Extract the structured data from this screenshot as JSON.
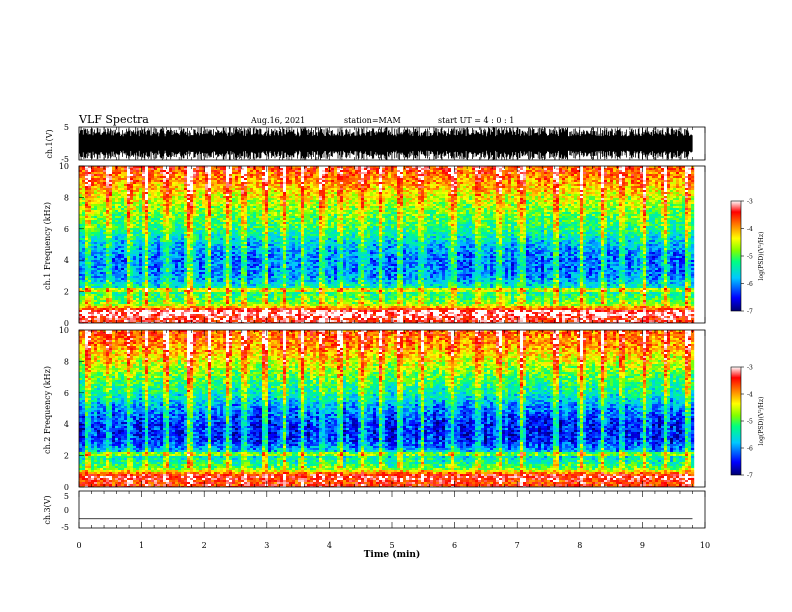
{
  "header": {
    "title": "VLF Spectra",
    "date": "Aug.16, 2021",
    "station": "station=MAM",
    "start": "start UT =  4 : 0  : 1"
  },
  "chart_data": [
    {
      "type": "line",
      "panel": "ch1-waveform",
      "ylabel": "ch.1(V)",
      "yticks": [
        "5",
        "-5"
      ],
      "ylim": [
        -5,
        5
      ],
      "xlim": [
        0,
        10
      ],
      "description_of_trace": "dense broadband waveform filling approx. -4 to 4 V up to ~9.8 min"
    },
    {
      "type": "heatmap",
      "panel": "ch1-spectrogram",
      "ylabel": "ch.1 Frequency (kHz)",
      "yticks": [
        "0",
        "2",
        "4",
        "6",
        "8",
        "10"
      ],
      "ylim": [
        0,
        10
      ],
      "xlim": [
        0,
        10
      ],
      "data_end_min": 9.8,
      "colorbar": {
        "label": "log(PSD)(V²/Hz)",
        "ticks": [
          "-3",
          "-4",
          "-5",
          "-6",
          "-7"
        ],
        "range": [
          -7,
          -3
        ]
      },
      "band_profile_log_psd": [
        {
          "freq_khz": 0.3,
          "value": -3.4
        },
        {
          "freq_khz": 0.7,
          "value": -3.0
        },
        {
          "freq_khz": 1.2,
          "value": -4.8
        },
        {
          "freq_khz": 2.0,
          "value": -5.3
        },
        {
          "freq_khz": 3.0,
          "value": -6.0
        },
        {
          "freq_khz": 4.0,
          "value": -6.1
        },
        {
          "freq_khz": 5.0,
          "value": -5.8
        },
        {
          "freq_khz": 6.0,
          "value": -5.2
        },
        {
          "freq_khz": 7.0,
          "value": -4.9
        },
        {
          "freq_khz": 8.0,
          "value": -4.5
        },
        {
          "freq_khz": 9.0,
          "value": -4.0
        },
        {
          "freq_khz": 10.0,
          "value": -3.6
        }
      ],
      "sferic_times_min": [
        0.12,
        0.45,
        0.78,
        1.05,
        1.38,
        1.72,
        1.78,
        2.05,
        2.35,
        2.62,
        2.95,
        3.25,
        3.55,
        3.85,
        4.15,
        4.5,
        4.8,
        5.1,
        5.45,
        5.95,
        6.35,
        6.7,
        7.05,
        7.6,
        8.0,
        8.35,
        8.65,
        9.0,
        9.35,
        9.7
      ]
    },
    {
      "type": "heatmap",
      "panel": "ch2-spectrogram",
      "ylabel": "ch.2 Frequency (kHz)",
      "yticks": [
        "0",
        "2",
        "4",
        "6",
        "8",
        "10"
      ],
      "ylim": [
        0,
        10
      ],
      "xlim": [
        0,
        10
      ],
      "data_end_min": 9.8,
      "colorbar": {
        "label": "log(PSD)(V²/Hz)",
        "ticks": [
          "-3",
          "-4",
          "-5",
          "-6",
          "-7"
        ],
        "range": [
          -7,
          -3
        ]
      },
      "band_profile_log_psd": [
        {
          "freq_khz": 0.3,
          "value": -3.6
        },
        {
          "freq_khz": 0.7,
          "value": -3.3
        },
        {
          "freq_khz": 1.2,
          "value": -5.0
        },
        {
          "freq_khz": 2.0,
          "value": -5.6
        },
        {
          "freq_khz": 3.0,
          "value": -6.4
        },
        {
          "freq_khz": 4.0,
          "value": -6.4
        },
        {
          "freq_khz": 5.0,
          "value": -6.0
        },
        {
          "freq_khz": 6.0,
          "value": -5.4
        },
        {
          "freq_khz": 7.0,
          "value": -5.0
        },
        {
          "freq_khz": 8.0,
          "value": -4.5
        },
        {
          "freq_khz": 9.0,
          "value": -4.0
        },
        {
          "freq_khz": 10.0,
          "value": -3.7
        }
      ],
      "sferic_times_min": [
        0.12,
        0.45,
        0.78,
        1.05,
        1.38,
        1.72,
        1.78,
        2.05,
        2.35,
        2.62,
        2.95,
        3.25,
        3.55,
        3.85,
        4.15,
        4.5,
        4.8,
        5.1,
        5.45,
        5.95,
        6.35,
        6.7,
        7.05,
        7.6,
        8.0,
        8.35,
        8.65,
        9.0,
        9.35,
        9.7
      ]
    },
    {
      "type": "line",
      "panel": "ch3-waveform",
      "ylabel": "ch.3(V)",
      "yticks": [
        "5",
        "0",
        "-5"
      ],
      "ylim": [
        -5,
        5
      ],
      "xlim": [
        0,
        10
      ],
      "x": [
        0,
        9.8
      ],
      "y": [
        -2.5,
        -2.5
      ]
    }
  ],
  "xaxis": {
    "label": "Time  (min)",
    "ticks": [
      "0",
      "1",
      "2",
      "3",
      "4",
      "5",
      "6",
      "7",
      "8",
      "9",
      "10"
    ]
  },
  "colors": {
    "scale": [
      "#000070",
      "#0000ff",
      "#00c8ff",
      "#00ff80",
      "#80ff00",
      "#ffff00",
      "#ff8000",
      "#ff0000",
      "#ffffff"
    ]
  }
}
